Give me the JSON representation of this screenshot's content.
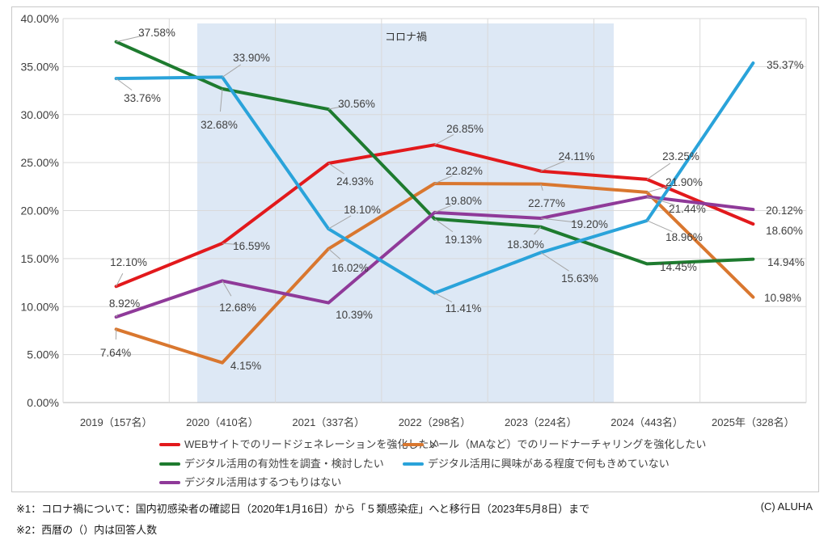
{
  "chart_data": {
    "type": "line",
    "title": "",
    "xlabel": "",
    "ylabel": "",
    "categories": [
      "2019（157名）",
      "2020（410名）",
      "2021（337名）",
      "2022（298名）",
      "2023（224名）",
      "2024（443名）",
      "2025年（328名）"
    ],
    "series": [
      {
        "key": "web",
        "name": "WEBサイトでのリードジェネレーションを強化したい",
        "color": "#e2191c",
        "values": [
          12.1,
          16.59,
          24.93,
          26.85,
          24.11,
          23.25,
          18.6
        ]
      },
      {
        "key": "mail",
        "name": "メール（MAなど）でのリードナーチャリングを強化したい",
        "color": "#d9772f",
        "values": [
          7.64,
          4.15,
          16.02,
          22.82,
          22.77,
          21.9,
          10.98
        ]
      },
      {
        "key": "research",
        "name": "デジタル活用の有効性を調査・検討したい",
        "color": "#1e7b2f",
        "values": [
          37.58,
          32.68,
          30.56,
          19.13,
          18.3,
          14.45,
          14.94
        ]
      },
      {
        "key": "undecided",
        "name": "デジタル活用に興味がある程度で何もきめていない",
        "color": "#2aa3da",
        "values": [
          33.76,
          33.9,
          18.1,
          11.41,
          15.63,
          18.96,
          35.37
        ]
      },
      {
        "key": "noplan",
        "name": "デジタル活用はするつもりはない",
        "color": "#8f3a99",
        "values": [
          8.92,
          12.68,
          10.39,
          19.8,
          19.2,
          21.44,
          20.12
        ]
      }
    ],
    "ylim": [
      0,
      40
    ],
    "ytick_step": 5,
    "ytick_labels": [
      "0.00%",
      "5.00%",
      "10.00%",
      "15.00%",
      "20.00%",
      "25.00%",
      "30.00%",
      "35.00%",
      "40.00%"
    ],
    "grid": true,
    "legend_position": "bottom",
    "annotation_band": {
      "label": "コロナ禍",
      "fill": "#dde8f5",
      "covers": "2020〜2023（コロナ禍期間）"
    }
  },
  "footer": {
    "note1": "※1：コロナ禍について：国内初感染者の確認日（2020年1月16日）から「５類感染症」へと移行日（2023年5月8日）まで",
    "note2": "※2：西暦の（）内は回答人数",
    "copyright": "(C)  ALUHA"
  }
}
